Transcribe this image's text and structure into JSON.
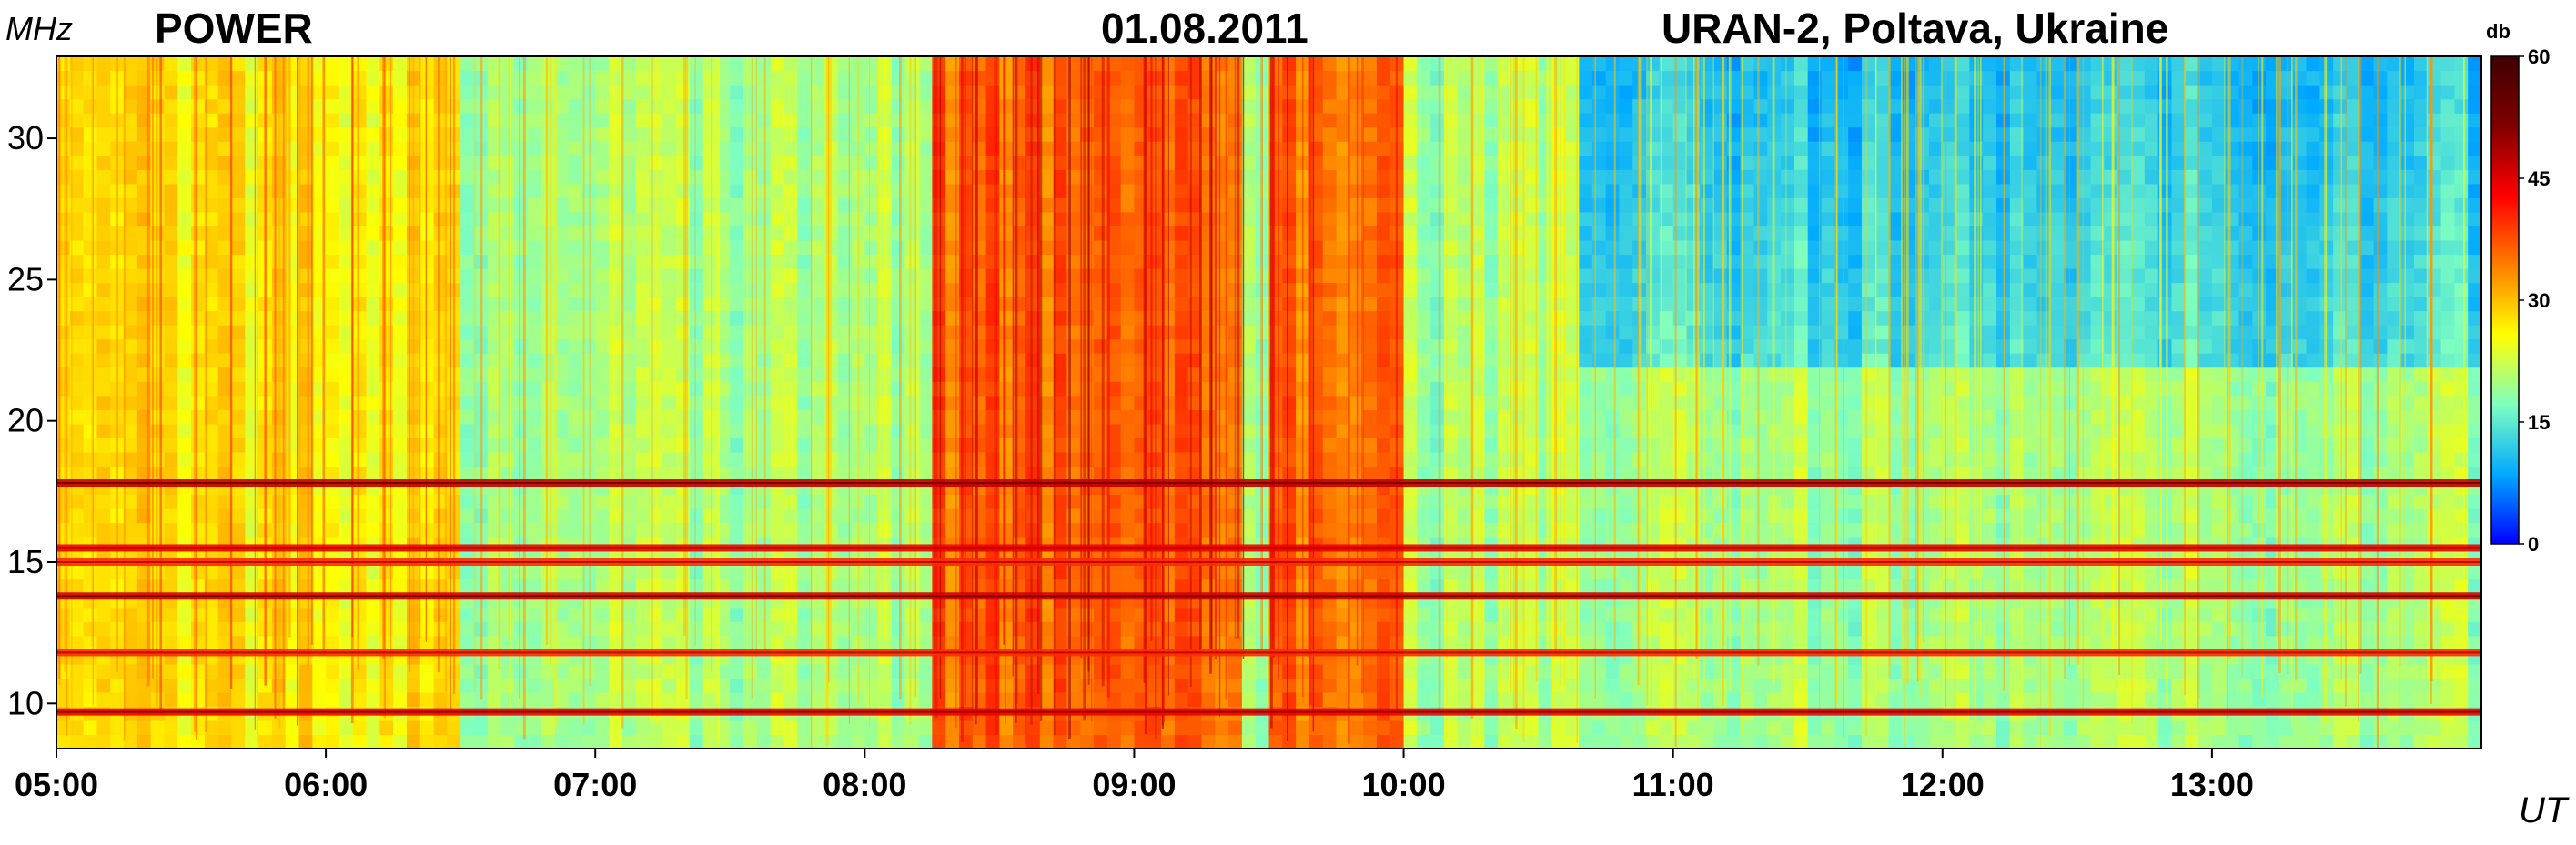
{
  "header": {
    "left_title": "POWER",
    "date": "01.08.2011",
    "station": "URAN-2, Poltava, Ukraine"
  },
  "chart_data": {
    "type": "heatmap",
    "title": "POWER",
    "date": "01.08.2011",
    "station": "URAN-2, Poltava, Ukraine",
    "xlabel": "UT",
    "ylabel": "MHz",
    "x_start": "05:00",
    "x_end": "14:00",
    "xlim_hours": [
      5,
      14
    ],
    "ylim_mhz": [
      8.4,
      32.9
    ],
    "x_ticks": [
      "05:00",
      "06:00",
      "07:00",
      "08:00",
      "09:00",
      "10:00",
      "11:00",
      "12:00",
      "13:00"
    ],
    "y_ticks": [
      10,
      15,
      20,
      25,
      30
    ],
    "colorbar": {
      "label": "db",
      "range": [
        0,
        60
      ],
      "ticks": [
        0,
        15,
        30,
        45,
        60
      ],
      "colormap": "jet",
      "colors": [
        "#0000ff",
        "#00aaff",
        "#7fffbf",
        "#ffff00",
        "#ff7f00",
        "#ff0000",
        "#7f0000",
        "#3f0000"
      ]
    },
    "background_level_db": 20,
    "interference_bands_mhz": [
      {
        "freq": 17.8,
        "level_db": 47
      },
      {
        "freq": 15.5,
        "level_db": 44
      },
      {
        "freq": 15.0,
        "level_db": 40
      },
      {
        "freq": 13.8,
        "level_db": 46
      },
      {
        "freq": 11.8,
        "level_db": 40
      },
      {
        "freq": 9.7,
        "level_db": 44
      }
    ],
    "enhanced_emission_periods": [
      {
        "start": "08:15",
        "end": "09:25",
        "level_db": 36
      },
      {
        "start": "09:30",
        "end": "10:00",
        "level_db": 35
      },
      {
        "start": "05:00",
        "end": "06:30",
        "level_db": 27
      }
    ],
    "low_level_periods": [
      {
        "start": "10:40",
        "end": "14:00",
        "freq_above_mhz": 22,
        "level_db": 14
      }
    ],
    "grid": false
  }
}
